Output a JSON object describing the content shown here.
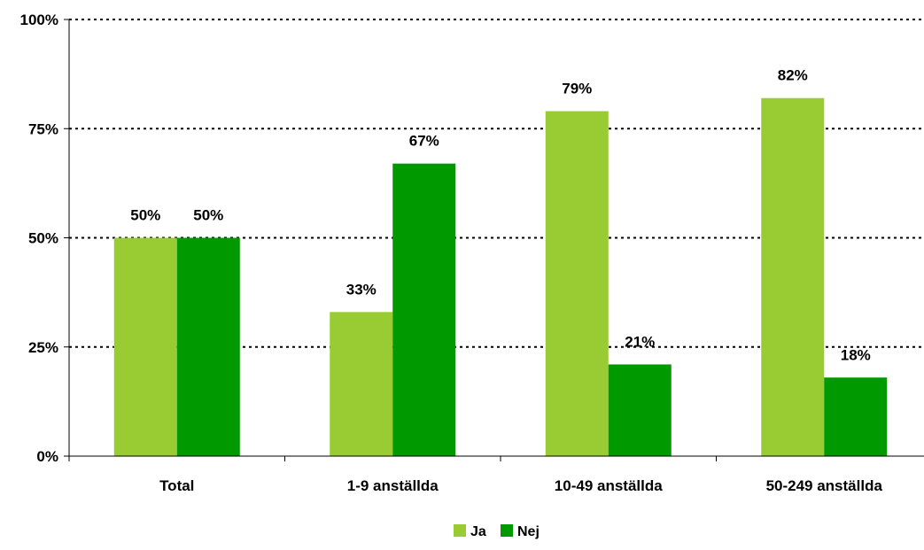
{
  "chart_data": {
    "type": "bar",
    "categories": [
      "Total",
      "1-9 anställda",
      "10-49 anställda",
      "50-249 anställda"
    ],
    "series": [
      {
        "name": "Ja",
        "values": [
          50,
          33,
          79,
          82
        ],
        "labels": [
          "50%",
          "33%",
          "79%",
          "82%"
        ],
        "color": "#99cc33"
      },
      {
        "name": "Nej",
        "values": [
          50,
          67,
          21,
          18
        ],
        "labels": [
          "50%",
          "67%",
          "21%",
          "18%"
        ],
        "color": "#009900"
      }
    ],
    "ylim": [
      0,
      100
    ],
    "yticks": [
      0,
      25,
      50,
      75,
      100
    ],
    "ytick_labels": [
      "0%",
      "25%",
      "50%",
      "75%",
      "100%"
    ],
    "grid": true,
    "grid_style": "dotted",
    "legend_position": "bottom-center"
  }
}
